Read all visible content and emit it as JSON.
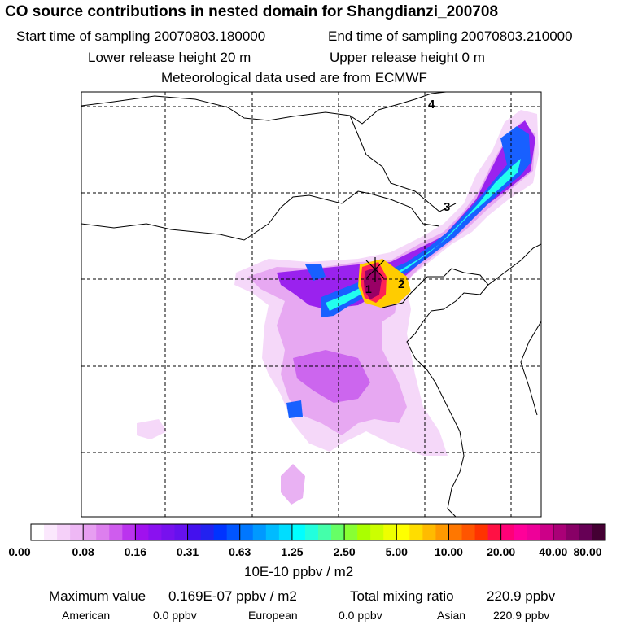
{
  "header": {
    "title": "CO  source contributions in nested domain for Shangdianzi_200708",
    "start_label": "Start time of sampling 20070803.180000",
    "end_label": "End time of sampling 20070803.210000",
    "lower_label": "Lower release height   20 m",
    "upper_label": "Upper release height    0 m",
    "met_label": "Meteorological data used are from ECMWF"
  },
  "map": {
    "markers": [
      "1",
      "2",
      "3",
      "4"
    ],
    "plume_colors": [
      "#f4d4f8",
      "#e7a8f2",
      "#cc66ee",
      "#9a22ee",
      "#5c22ee",
      "#1860ff",
      "#10ccff",
      "#22ffee",
      "#ffcc00",
      "#ff2255",
      "#990066"
    ]
  },
  "colorbar": {
    "colors": [
      "#ffffff",
      "#fbe8fd",
      "#f5d0f9",
      "#eeb8f5",
      "#e79ef1",
      "#dd7fee",
      "#cf5cee",
      "#bb33ee",
      "#a011ee",
      "#8a11f0",
      "#7711ee",
      "#6611ee",
      "#4411ee",
      "#2222f0",
      "#0033ff",
      "#0055ff",
      "#0077ff",
      "#0099ff",
      "#00bbff",
      "#00ddff",
      "#00ffff",
      "#22ffdd",
      "#44ffaa",
      "#66ff66",
      "#88ff33",
      "#aaff00",
      "#ccff00",
      "#eeff00",
      "#ffff00",
      "#ffdd00",
      "#ffbb00",
      "#ff9900",
      "#ff7700",
      "#ff5500",
      "#ff3300",
      "#ff1144",
      "#ff0077",
      "#ff0099",
      "#ee0099",
      "#cc0088",
      "#aa0077",
      "#880066",
      "#660055",
      "#440033"
    ],
    "tick_labels": [
      "0.00",
      "0.08",
      "0.16",
      "0.31",
      "0.63",
      "1.25",
      "2.50",
      "5.00",
      "10.00",
      "20.00",
      "40.00",
      "80.00"
    ],
    "unit": "10E-10 ppbv / m2"
  },
  "footer": {
    "max_label": "Maximum value",
    "max_value": "0.169E-07 ppbv / m2",
    "total_label": "Total mixing ratio",
    "total_value": "220.9 ppbv",
    "american_label": "American",
    "american_value": "0.0 ppbv",
    "european_label": "European",
    "european_value": "0.0 ppbv",
    "asian_label": "Asian",
    "asian_value": "220.9 ppbv"
  }
}
